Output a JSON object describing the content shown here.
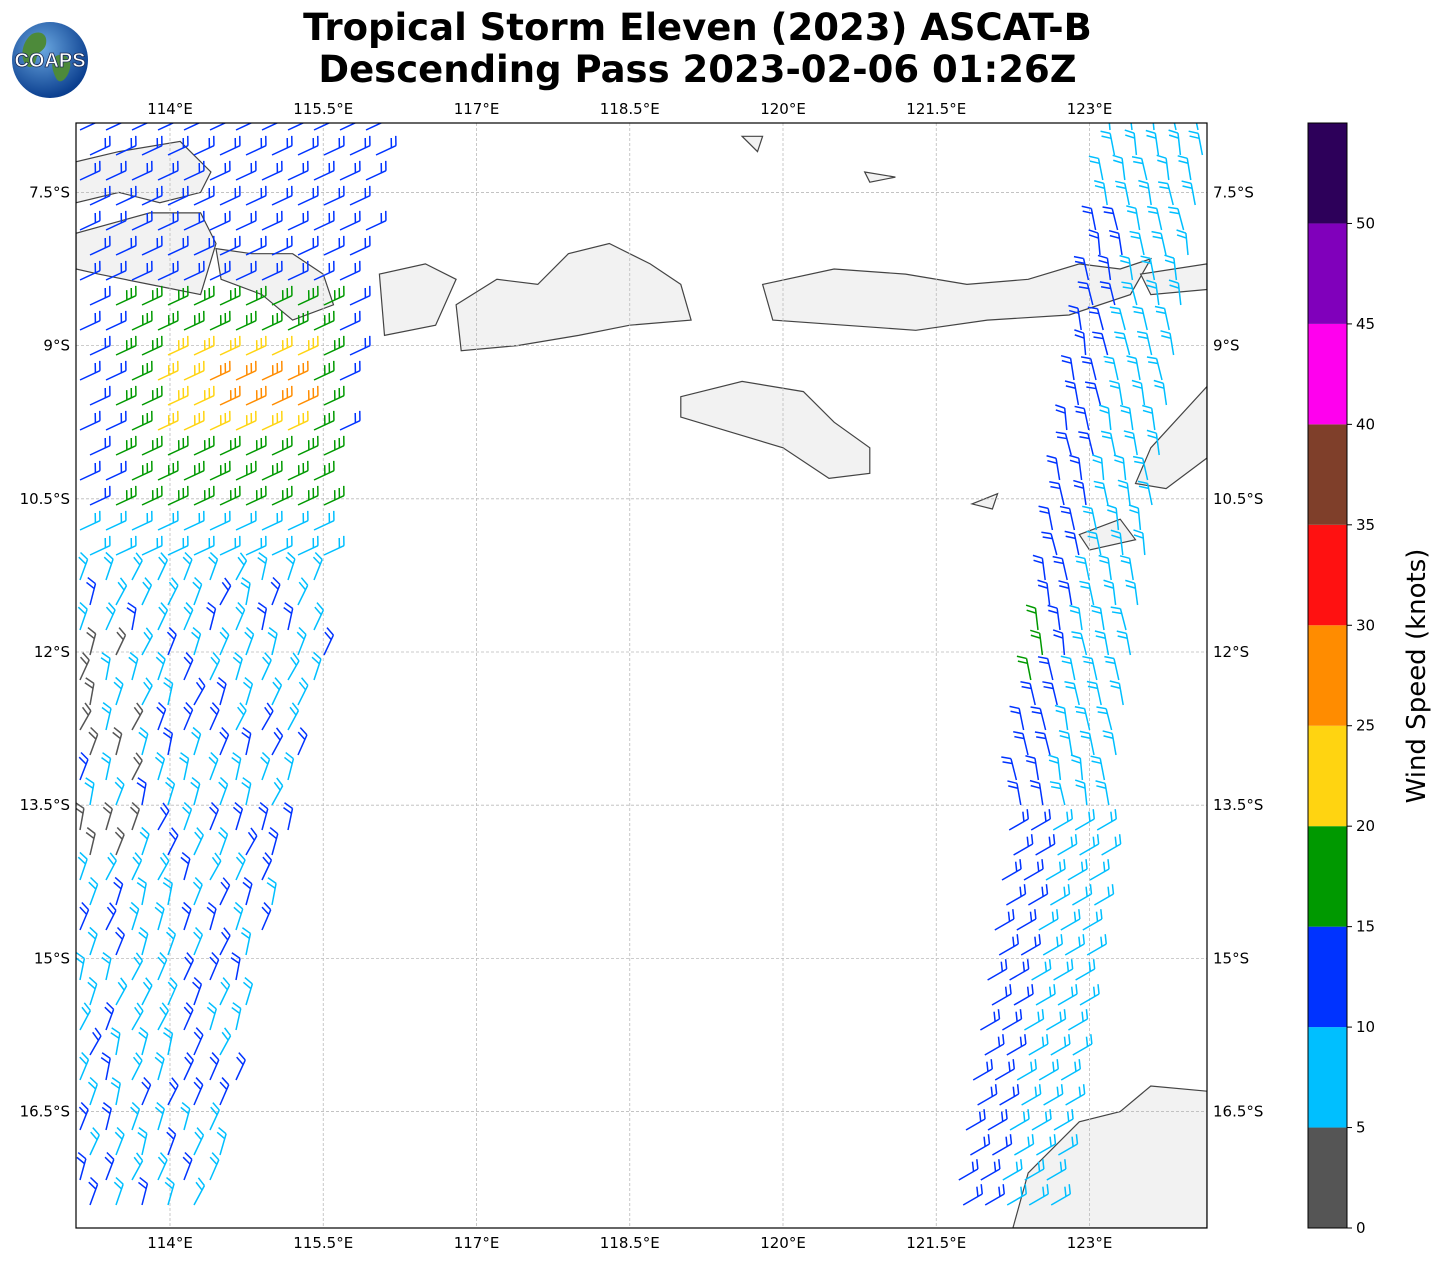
{
  "title": {
    "line1": "Tropical Storm Eleven (2023) ASCAT-B",
    "line2": "Descending Pass 2023-02-06 01:26Z"
  },
  "logo": {
    "text": "COAPS"
  },
  "map": {
    "lon_range": [
      113.08,
      124.15
    ],
    "lat_range": [
      -17.64,
      -6.82
    ],
    "lon_ticks": [
      "114°E",
      "115.5°E",
      "117°E",
      "118.5°E",
      "120°E",
      "121.5°E",
      "123°E"
    ],
    "lon_tick_values": [
      114,
      115.5,
      117,
      118.5,
      120,
      121.5,
      123
    ],
    "lat_ticks": [
      "7.5°S",
      "9°S",
      "10.5°S",
      "12°S",
      "13.5°S",
      "15°S",
      "16.5°S"
    ],
    "lat_tick_values": [
      -7.5,
      -9,
      -10.5,
      -12,
      -13.5,
      -15,
      -16.5
    ],
    "grid": "dashed gray",
    "land_color": "#f2f2f2",
    "coast_color": "#444444"
  },
  "colorbar": {
    "label": "Wind Speed (knots)",
    "bounds": [
      0,
      5,
      10,
      15,
      20,
      25,
      30,
      35,
      40,
      45,
      50,
      55
    ],
    "tick_labels": [
      "0",
      "5",
      "10",
      "15",
      "20",
      "25",
      "30",
      "35",
      "40",
      "45",
      "50"
    ],
    "colors": [
      "#555555",
      "#00bfff",
      "#0033ff",
      "#009900",
      "#ffd411",
      "#ff8c00",
      "#ff1111",
      "#7f3f2a",
      "#ff00ee",
      "#8000bb",
      "#2d005a"
    ]
  }
}
